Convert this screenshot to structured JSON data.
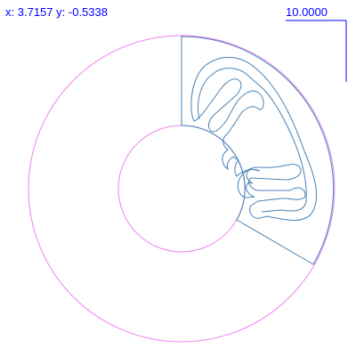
{
  "readout": {
    "x_label": "x:",
    "x_value": "3.7157",
    "y_label": "y:",
    "y_value": "-0.5338"
  },
  "scale_bar": {
    "label": "10.0000"
  },
  "colors": {
    "background": "#ffffff",
    "readout_text": "#0000ff",
    "scale_bar": "#0000ff",
    "outer_boundary": "#ee82ee",
    "inner_boundary": "#ee82ee",
    "sector_outline": "#4682b4",
    "serpentine_channel": "#4682b4"
  }
}
